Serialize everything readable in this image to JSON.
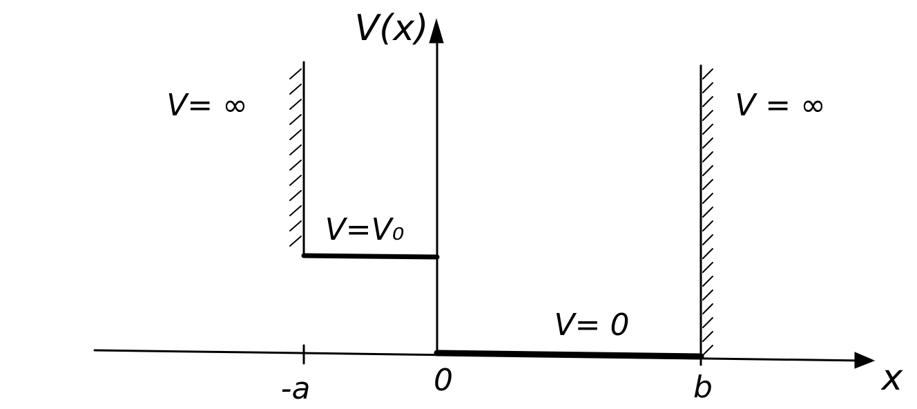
{
  "axes": {
    "y_label": "V(x)",
    "x_label": "x"
  },
  "regions": [
    {
      "label": "V= ∞"
    },
    {
      "label": "V=V₀"
    },
    {
      "label": "V= 0"
    },
    {
      "label": "V = ∞"
    }
  ],
  "ticks": [
    "-a",
    "0",
    "b"
  ]
}
